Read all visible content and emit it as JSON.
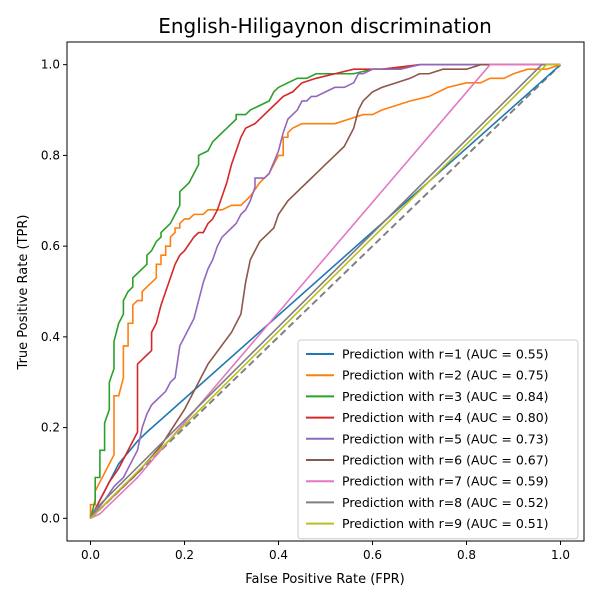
{
  "chart_data": {
    "type": "line",
    "title": "English-Hiligaynon discrimination",
    "xlabel": "False Positive Rate (FPR)",
    "ylabel": "True Positive Rate (TPR)",
    "xlim": [
      -0.05,
      1.05
    ],
    "ylim": [
      -0.05,
      1.05
    ],
    "xticks": [
      0.0,
      0.2,
      0.4,
      0.6,
      0.8,
      1.0
    ],
    "yticks": [
      0.0,
      0.2,
      0.4,
      0.6,
      0.8,
      1.0
    ],
    "xtick_labels": [
      "0.0",
      "0.2",
      "0.4",
      "0.6",
      "0.8",
      "1.0"
    ],
    "ytick_labels": [
      "0.0",
      "0.2",
      "0.4",
      "0.6",
      "0.8",
      "1.0"
    ],
    "grid": false,
    "legend_position": "lower-right",
    "reference_line": {
      "style": "dashed",
      "color": "#808080",
      "x": [
        0,
        1
      ],
      "y": [
        0,
        1
      ]
    },
    "series": [
      {
        "name": "Prediction with r=1 (AUC = 0.55)",
        "color": "#1f77b4",
        "x": [
          0,
          0.01,
          0.03,
          0.06,
          0.1,
          0.12,
          1.0
        ],
        "y": [
          0,
          0.02,
          0.06,
          0.12,
          0.17,
          0.19,
          1.0
        ]
      },
      {
        "name": "Prediction with r=2 (AUC = 0.75)",
        "color": "#ff7f0e",
        "x": [
          0,
          0,
          0.01,
          0.01,
          0.02,
          0.03,
          0.04,
          0.05,
          0.05,
          0.06,
          0.07,
          0.07,
          0.08,
          0.08,
          0.09,
          0.09,
          0.1,
          0.11,
          0.11,
          0.12,
          0.13,
          0.14,
          0.14,
          0.15,
          0.15,
          0.16,
          0.16,
          0.17,
          0.17,
          0.18,
          0.18,
          0.19,
          0.19,
          0.2,
          0.21,
          0.22,
          0.23,
          0.24,
          0.25,
          0.26,
          0.28,
          0.3,
          0.32,
          0.34,
          0.36,
          0.38,
          0.4,
          0.41,
          0.41,
          0.42,
          0.42,
          0.43,
          0.43,
          0.45,
          0.48,
          0.52,
          0.55,
          0.58,
          0.6,
          0.62,
          0.65,
          0.68,
          0.72,
          0.76,
          0.8,
          0.83,
          0.85,
          0.88,
          0.9,
          0.93,
          0.95,
          0.97,
          1.0
        ],
        "y": [
          0,
          0.03,
          0.03,
          0.06,
          0.08,
          0.1,
          0.12,
          0.14,
          0.27,
          0.27,
          0.31,
          0.38,
          0.38,
          0.43,
          0.43,
          0.47,
          0.48,
          0.48,
          0.5,
          0.51,
          0.52,
          0.53,
          0.56,
          0.56,
          0.58,
          0.58,
          0.6,
          0.6,
          0.62,
          0.63,
          0.64,
          0.64,
          0.65,
          0.66,
          0.66,
          0.67,
          0.67,
          0.67,
          0.68,
          0.68,
          0.68,
          0.69,
          0.69,
          0.71,
          0.74,
          0.76,
          0.8,
          0.8,
          0.84,
          0.84,
          0.85,
          0.86,
          0.86,
          0.87,
          0.87,
          0.87,
          0.88,
          0.89,
          0.89,
          0.9,
          0.91,
          0.92,
          0.93,
          0.95,
          0.96,
          0.96,
          0.97,
          0.97,
          0.98,
          0.99,
          0.99,
          0.99,
          1.0
        ]
      },
      {
        "name": "Prediction with r=3 (AUC = 0.84)",
        "color": "#2ca02c",
        "x": [
          0,
          0.005,
          0.01,
          0.01,
          0.02,
          0.02,
          0.03,
          0.03,
          0.04,
          0.04,
          0.05,
          0.05,
          0.06,
          0.07,
          0.07,
          0.08,
          0.09,
          0.09,
          0.1,
          0.11,
          0.12,
          0.12,
          0.13,
          0.14,
          0.15,
          0.15,
          0.16,
          0.17,
          0.18,
          0.19,
          0.19,
          0.2,
          0.21,
          0.22,
          0.23,
          0.23,
          0.25,
          0.26,
          0.27,
          0.28,
          0.29,
          0.3,
          0.31,
          0.31,
          0.33,
          0.34,
          0.36,
          0.38,
          0.39,
          0.4,
          0.42,
          0.44,
          0.46,
          0.48,
          0.52,
          0.56,
          0.6,
          0.64,
          0.7,
          0.76,
          0.82,
          0.88,
          0.94,
          1.0
        ],
        "y": [
          0,
          0.02,
          0.04,
          0.09,
          0.09,
          0.15,
          0.15,
          0.21,
          0.24,
          0.3,
          0.33,
          0.39,
          0.43,
          0.45,
          0.48,
          0.5,
          0.51,
          0.53,
          0.54,
          0.55,
          0.56,
          0.58,
          0.59,
          0.61,
          0.62,
          0.63,
          0.64,
          0.65,
          0.67,
          0.69,
          0.72,
          0.73,
          0.74,
          0.76,
          0.78,
          0.8,
          0.81,
          0.83,
          0.84,
          0.85,
          0.86,
          0.87,
          0.88,
          0.89,
          0.89,
          0.9,
          0.91,
          0.92,
          0.94,
          0.95,
          0.96,
          0.97,
          0.97,
          0.98,
          0.98,
          0.98,
          0.99,
          0.99,
          1.0,
          1.0,
          1.0,
          1.0,
          1.0,
          1.0
        ]
      },
      {
        "name": "Prediction with r=4 (AUC = 0.80)",
        "color": "#d62728",
        "x": [
          0,
          0.02,
          0.04,
          0.06,
          0.08,
          0.1,
          0.1,
          0.11,
          0.12,
          0.13,
          0.13,
          0.14,
          0.15,
          0.16,
          0.17,
          0.18,
          0.19,
          0.2,
          0.22,
          0.23,
          0.24,
          0.25,
          0.26,
          0.27,
          0.28,
          0.29,
          0.3,
          0.31,
          0.32,
          0.33,
          0.35,
          0.37,
          0.39,
          0.41,
          0.43,
          0.45,
          0.48,
          0.52,
          0.56,
          0.62,
          0.7,
          0.8,
          0.9,
          1.0
        ],
        "y": [
          0,
          0.04,
          0.08,
          0.11,
          0.15,
          0.19,
          0.34,
          0.35,
          0.36,
          0.37,
          0.41,
          0.43,
          0.47,
          0.5,
          0.53,
          0.56,
          0.58,
          0.59,
          0.62,
          0.63,
          0.63,
          0.65,
          0.66,
          0.68,
          0.71,
          0.74,
          0.78,
          0.81,
          0.84,
          0.86,
          0.87,
          0.89,
          0.91,
          0.93,
          0.94,
          0.96,
          0.97,
          0.98,
          0.99,
          0.99,
          1.0,
          1.0,
          1.0,
          1.0
        ]
      },
      {
        "name": "Prediction with r=5 (AUC = 0.73)",
        "color": "#9467bd",
        "x": [
          0,
          0.03,
          0.05,
          0.07,
          0.08,
          0.1,
          0.11,
          0.12,
          0.13,
          0.14,
          0.15,
          0.16,
          0.17,
          0.18,
          0.19,
          0.2,
          0.21,
          0.22,
          0.24,
          0.25,
          0.26,
          0.27,
          0.28,
          0.29,
          0.3,
          0.31,
          0.32,
          0.33,
          0.34,
          0.35,
          0.35,
          0.37,
          0.38,
          0.4,
          0.41,
          0.42,
          0.43,
          0.44,
          0.45,
          0.46,
          0.47,
          0.48,
          0.5,
          0.52,
          0.54,
          0.56,
          0.57,
          0.58,
          0.6,
          0.62,
          0.66,
          0.7,
          0.76,
          0.82,
          0.9,
          1.0
        ],
        "y": [
          0,
          0.04,
          0.07,
          0.09,
          0.11,
          0.15,
          0.2,
          0.23,
          0.25,
          0.26,
          0.27,
          0.28,
          0.3,
          0.31,
          0.38,
          0.4,
          0.42,
          0.44,
          0.52,
          0.55,
          0.57,
          0.6,
          0.62,
          0.63,
          0.64,
          0.65,
          0.67,
          0.68,
          0.7,
          0.73,
          0.75,
          0.75,
          0.76,
          0.81,
          0.85,
          0.88,
          0.89,
          0.9,
          0.92,
          0.92,
          0.93,
          0.93,
          0.94,
          0.95,
          0.95,
          0.96,
          0.98,
          0.98,
          0.99,
          0.99,
          0.99,
          1.0,
          1.0,
          1.0,
          1.0,
          1.0
        ]
      },
      {
        "name": "Prediction with r=6 (AUC = 0.67)",
        "color": "#8c564b",
        "x": [
          0,
          0.05,
          0.1,
          0.15,
          0.2,
          0.25,
          0.3,
          0.32,
          0.33,
          0.34,
          0.36,
          0.37,
          0.38,
          0.39,
          0.4,
          0.42,
          0.44,
          0.46,
          0.48,
          0.5,
          0.52,
          0.54,
          0.55,
          0.56,
          0.57,
          0.58,
          0.6,
          0.62,
          0.65,
          0.68,
          0.7,
          0.72,
          0.75,
          0.78,
          0.8,
          0.83,
          0.85,
          0.9,
          0.95,
          1.0
        ],
        "y": [
          0,
          0.05,
          0.1,
          0.16,
          0.24,
          0.34,
          0.41,
          0.45,
          0.52,
          0.57,
          0.61,
          0.62,
          0.63,
          0.64,
          0.67,
          0.7,
          0.72,
          0.74,
          0.76,
          0.78,
          0.8,
          0.82,
          0.84,
          0.86,
          0.9,
          0.92,
          0.94,
          0.95,
          0.96,
          0.97,
          0.98,
          0.98,
          0.99,
          0.99,
          0.99,
          1.0,
          1.0,
          1.0,
          1.0,
          1.0
        ]
      },
      {
        "name": "Prediction with r=7 (AUC = 0.59)",
        "color": "#e377c2",
        "x": [
          0,
          0.02,
          0.05,
          0.1,
          0.85,
          1.0
        ],
        "y": [
          0,
          0.01,
          0.04,
          0.09,
          1.0,
          1.0
        ]
      },
      {
        "name": "Prediction with r=8 (AUC = 0.52)",
        "color": "#7f7f7f",
        "x": [
          0,
          0.01,
          0.96,
          1.0
        ],
        "y": [
          0,
          0.02,
          1.0,
          1.0
        ]
      },
      {
        "name": "Prediction with r=9 (AUC = 0.51)",
        "color": "#bcbd22",
        "x": [
          0,
          0.01,
          0.97,
          1.0
        ],
        "y": [
          0,
          0.01,
          1.0,
          1.0
        ]
      }
    ]
  }
}
